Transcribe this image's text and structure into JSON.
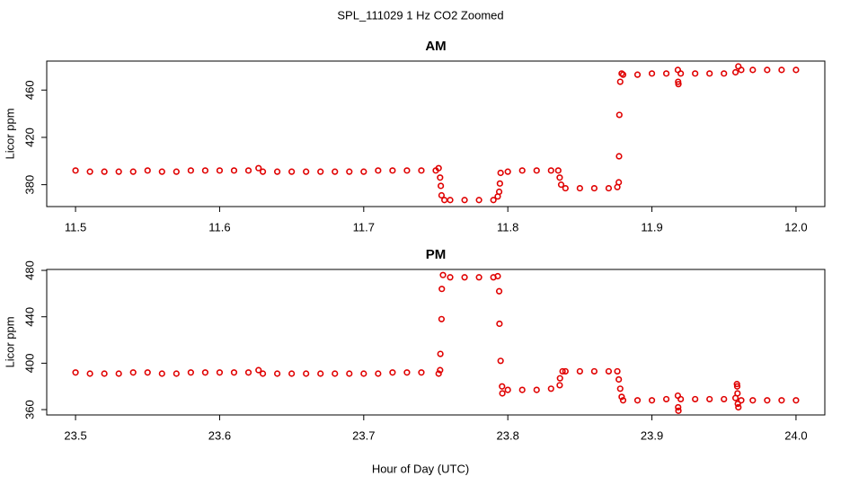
{
  "title": "SPL_111029  1 Hz CO2 Zoomed",
  "x_label": "Hour of Day (UTC)",
  "chart_data": [
    {
      "type": "scatter",
      "title": "AM",
      "y_label": "Licor ppm",
      "color": "#e00000",
      "xlim": [
        11.48,
        12.02
      ],
      "ylim": [
        361.5,
        484.5
      ],
      "xticks": [
        {
          "value": 11.5,
          "label": "11.5"
        },
        11.6,
        11.7,
        11.8,
        11.9,
        {
          "value": 12,
          "label": "12.0"
        }
      ],
      "yticks": [
        380,
        420,
        460
      ],
      "x": [
        11.5,
        11.51,
        11.52,
        11.53,
        11.54,
        11.55,
        11.56,
        11.57,
        11.58,
        11.59,
        11.6,
        11.61,
        11.62,
        11.627,
        11.63,
        11.64,
        11.65,
        11.66,
        11.67,
        11.68,
        11.69,
        11.7,
        11.71,
        11.72,
        11.73,
        11.74,
        11.75,
        11.752,
        11.753,
        11.7535,
        11.754,
        11.756,
        11.76,
        11.77,
        11.78,
        11.79,
        11.793,
        11.794,
        11.7945,
        11.795,
        11.8,
        11.81,
        11.82,
        11.83,
        11.835,
        11.836,
        11.837,
        11.84,
        11.85,
        11.86,
        11.87,
        11.876,
        11.877,
        11.8772,
        11.8774,
        11.878,
        11.879,
        11.88,
        11.89,
        11.9,
        11.91,
        11.918,
        11.9182,
        11.9184,
        11.92,
        11.93,
        11.94,
        11.95,
        11.958,
        11.96,
        11.962,
        11.97,
        11.98,
        11.99,
        12.0
      ],
      "values": [
        392,
        391,
        391,
        391,
        391,
        392,
        391,
        391,
        392,
        392,
        392,
        392,
        392,
        394,
        391,
        391,
        391,
        391,
        391,
        391,
        391,
        391,
        392,
        392,
        392,
        392,
        392,
        394,
        386,
        379,
        371,
        367,
        367,
        367,
        367,
        367,
        370,
        374,
        381,
        390,
        391,
        392,
        392,
        392,
        392,
        386,
        380,
        377,
        377,
        377,
        377,
        378,
        382,
        404,
        439,
        467,
        474,
        473,
        473,
        474,
        474,
        477,
        467,
        465,
        474,
        474,
        474,
        474,
        475,
        480,
        477,
        477,
        477,
        477,
        477
      ]
    },
    {
      "type": "scatter",
      "title": "PM",
      "y_label": "Licor ppm",
      "color": "#e00000",
      "xlim": [
        23.48,
        24.02
      ],
      "ylim": [
        355.4,
        480.8
      ],
      "xticks": [
        {
          "value": 23.5,
          "label": "23.5"
        },
        23.6,
        23.7,
        23.8,
        23.9,
        {
          "value": 24,
          "label": "24.0"
        }
      ],
      "yticks": [
        360,
        400,
        440,
        480
      ],
      "x": [
        23.5,
        23.51,
        23.52,
        23.53,
        23.54,
        23.55,
        23.56,
        23.57,
        23.58,
        23.59,
        23.6,
        23.61,
        23.62,
        23.627,
        23.63,
        23.64,
        23.65,
        23.66,
        23.67,
        23.68,
        23.69,
        23.7,
        23.71,
        23.72,
        23.73,
        23.74,
        23.752,
        23.753,
        23.7532,
        23.754,
        23.7542,
        23.755,
        23.76,
        23.77,
        23.78,
        23.79,
        23.793,
        23.794,
        23.7942,
        23.795,
        23.796,
        23.7962,
        23.8,
        23.81,
        23.82,
        23.83,
        23.836,
        23.8362,
        23.838,
        23.84,
        23.85,
        23.86,
        23.87,
        23.876,
        23.877,
        23.878,
        23.879,
        23.88,
        23.89,
        23.9,
        23.91,
        23.918,
        23.9182,
        23.9184,
        23.92,
        23.93,
        23.94,
        23.95,
        23.958,
        23.959,
        23.9592,
        23.9594,
        23.9596,
        23.96,
        23.962,
        23.97,
        23.98,
        23.99,
        24.0
      ],
      "values": [
        392,
        391,
        391,
        391,
        392,
        392,
        391,
        391,
        392,
        392,
        392,
        392,
        392,
        394,
        391,
        391,
        391,
        391,
        391,
        391,
        391,
        391,
        391,
        392,
        392,
        392,
        391,
        394,
        408,
        438,
        464,
        476,
        474,
        474,
        474,
        474,
        475,
        462,
        434,
        402,
        380,
        374,
        377,
        377,
        377,
        378,
        381,
        387,
        393,
        393,
        393,
        393,
        393,
        393,
        386,
        378,
        371,
        368,
        368,
        368,
        369,
        372,
        362,
        359,
        369,
        369,
        369,
        369,
        370,
        382,
        380,
        374,
        365,
        362,
        368,
        368,
        368,
        368,
        368
      ]
    }
  ]
}
